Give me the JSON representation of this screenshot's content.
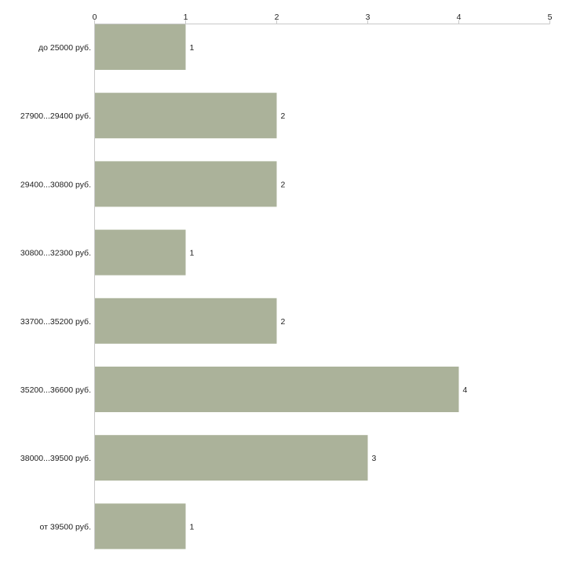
{
  "chart_data": {
    "type": "bar",
    "orientation": "horizontal",
    "categories": [
      "до 25000 руб.",
      "27900...29400 руб.",
      "29400...30800 руб.",
      "30800...32300 руб.",
      "33700...35200 руб.",
      "35200...36600 руб.",
      "38000...39500 руб.",
      "от 39500 руб."
    ],
    "values": [
      1,
      2,
      2,
      1,
      2,
      4,
      3,
      1
    ],
    "xlim": [
      0,
      5
    ],
    "x_ticks": [
      0,
      1,
      2,
      3,
      4,
      5
    ],
    "x_axis_position": "top",
    "grid": false,
    "legend": "none",
    "data_labels": true,
    "bar_color": "#abb29a",
    "axis_color": "#c8c8c8",
    "text_color": "#222222",
    "title": "",
    "xlabel": "",
    "ylabel": ""
  }
}
